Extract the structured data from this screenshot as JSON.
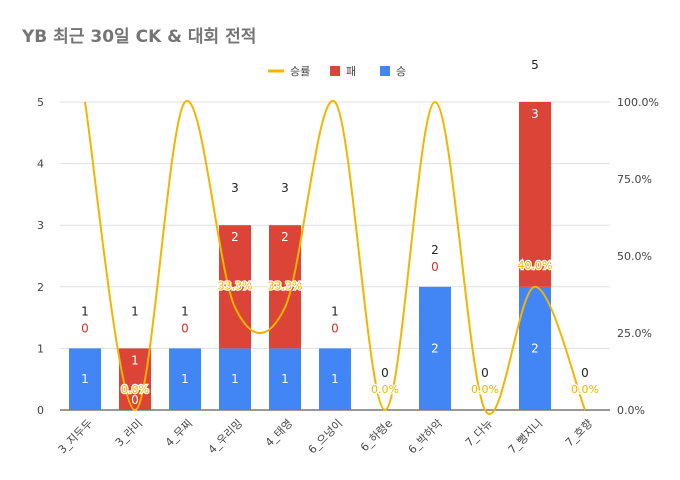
{
  "chart_data": {
    "type": "bar",
    "title": "YB 최근 30일 CK & 대회 전적",
    "categories": [
      "3_지두두",
      "3_라미",
      "4_무찌",
      "4_우리밍",
      "4_태영",
      "6_으넝이",
      "6_하령e",
      "6_박하악",
      "7_다뉴",
      "7_뻥지니",
      "7_호향"
    ],
    "series": [
      {
        "name": "승",
        "type": "bar",
        "stacked": true,
        "color": "#4285f4",
        "values": [
          1,
          0,
          1,
          1,
          1,
          1,
          0,
          2,
          0,
          2,
          0
        ],
        "labels": [
          "1",
          "0",
          "1",
          "1",
          "1",
          "1",
          "",
          "2",
          "",
          "2",
          ""
        ]
      },
      {
        "name": "패",
        "type": "bar",
        "stacked": true,
        "color": "#db4437",
        "values": [
          0,
          1,
          0,
          2,
          2,
          0,
          0,
          0,
          0,
          3,
          0
        ],
        "labels": [
          "0",
          "1",
          "0",
          "2",
          "2",
          "0",
          "0",
          "0",
          "0",
          "3",
          "0"
        ]
      },
      {
        "name": "승률",
        "type": "line",
        "smooth": true,
        "axis": "right",
        "color": "#f4b400",
        "values": [
          100,
          0,
          100,
          33.3,
          33.3,
          100,
          0,
          100,
          0,
          40,
          0
        ],
        "labels": [
          "",
          "0.0%",
          "",
          "33.3%",
          "33.3%",
          "",
          "0.0%",
          "",
          "0.0%",
          "40.0%",
          "0.0%"
        ]
      }
    ],
    "totals": [
      "1",
      "1",
      "1",
      "3",
      "3",
      "1",
      "0",
      "2",
      "0",
      "5",
      "0"
    ],
    "ylim": [
      0,
      5
    ],
    "yticks": [
      "0",
      "1",
      "2",
      "3",
      "4",
      "5"
    ],
    "y2lim": [
      0,
      100
    ],
    "y2ticks": [
      "0.0%",
      "25.0%",
      "50.0%",
      "75.0%",
      "100.0%"
    ],
    "legend_position": "top-center",
    "grid": true
  }
}
